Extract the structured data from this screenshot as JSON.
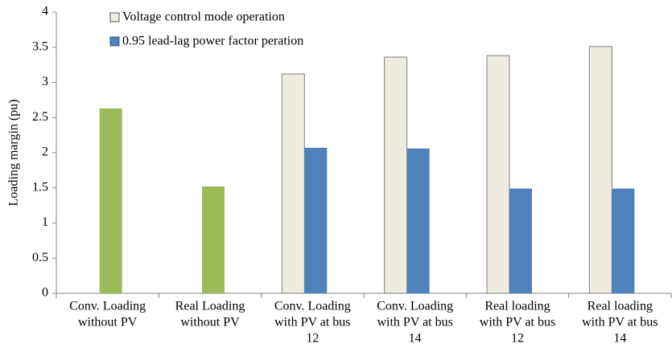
{
  "chart_data": {
    "type": "bar",
    "y_label": "Loading margin (pu)",
    "categories": [
      [
        "Conv. Loading",
        "without PV"
      ],
      [
        "Real Loading",
        "without PV"
      ],
      [
        "Conv. Loading",
        "with PV at bus",
        "12"
      ],
      [
        "Conv. Loading",
        "with PV at bus",
        "14"
      ],
      [
        "Real loading",
        "with PV at bus",
        "12"
      ],
      [
        "Real loading",
        "with PV at bus",
        "14"
      ]
    ],
    "series": [
      {
        "name": "Voltage control mode operation",
        "color": "#eeece1",
        "values": [
          null,
          null,
          3.12,
          3.36,
          3.38,
          3.51
        ]
      },
      {
        "name": "0.95 lead-lag power factor peration",
        "color": "#4f81bd",
        "point_colors": [
          "#9bbb59",
          "#9bbb59",
          "#4f81bd",
          "#4f81bd",
          "#4f81bd",
          "#4f81bd"
        ],
        "values": [
          2.63,
          1.52,
          2.07,
          2.06,
          1.49,
          1.49
        ]
      }
    ],
    "ylim": [
      0,
      4
    ],
    "yticks": [
      0,
      0.5,
      1,
      1.5,
      2,
      2.5,
      3,
      3.5,
      4
    ],
    "grid": false,
    "legend": "top"
  }
}
